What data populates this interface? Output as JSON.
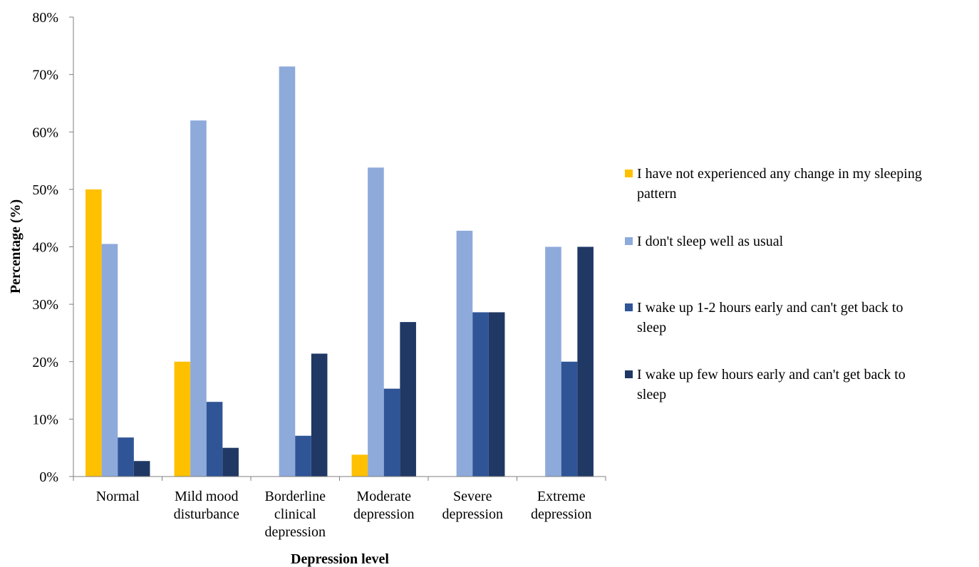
{
  "chart_data": {
    "type": "bar",
    "title": "",
    "xlabel": "Depression level",
    "ylabel": "Percentage (%)",
    "ylim": [
      0,
      80
    ],
    "yticks": [
      0,
      10,
      20,
      30,
      40,
      50,
      60,
      70,
      80
    ],
    "ytick_suffix": "%",
    "grid": false,
    "legend_position": "right",
    "categories": [
      [
        "Normal"
      ],
      [
        "Mild mood",
        "disturbance"
      ],
      [
        "Borderline",
        "clinical",
        "depression"
      ],
      [
        "Moderate",
        "depression"
      ],
      [
        "Severe",
        "depression"
      ],
      [
        "Extreme",
        "depression"
      ]
    ],
    "series": [
      {
        "name": "I have not experienced any change in my sleeping pattern",
        "legend_lines": [
          "I have not experienced any change in my sleeping",
          "pattern"
        ],
        "color": "#FFC000",
        "values": [
          50,
          20,
          0,
          3.8,
          0,
          0
        ]
      },
      {
        "name": "I don't sleep well as usual",
        "legend_lines": [
          "I don't sleep well as usual"
        ],
        "color": "#8EAADB",
        "values": [
          40.5,
          62,
          71.4,
          53.8,
          42.8,
          40
        ]
      },
      {
        "name": "I wake up 1-2 hours early and can't get back to sleep",
        "legend_lines": [
          "I wake up 1-2 hours early and can't get back to",
          "sleep"
        ],
        "color": "#2F5597",
        "values": [
          6.8,
          13,
          7.1,
          15.3,
          28.6,
          20
        ]
      },
      {
        "name": "I wake up few hours early and can't get back to sleep",
        "legend_lines": [
          "I wake up few hours early and can't get back to",
          "sleep"
        ],
        "color": "#203864",
        "values": [
          2.7,
          5,
          21.4,
          26.9,
          28.6,
          40
        ]
      }
    ]
  }
}
